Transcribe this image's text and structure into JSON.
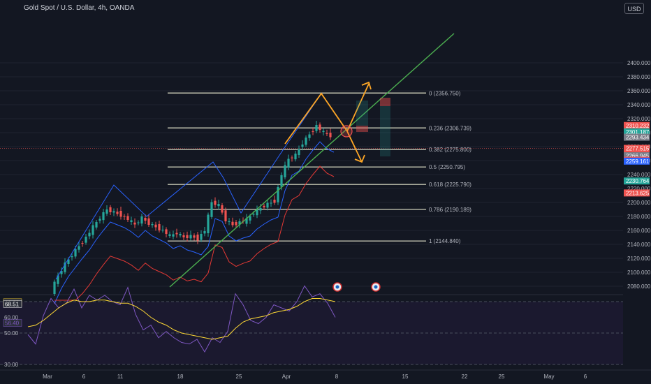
{
  "header": {
    "title": "Gold Spot / U.S. Dollar, 4h, OANDA",
    "currency_button": "USD"
  },
  "colors": {
    "background": "#131722",
    "axis_text": "#b2b5be",
    "up": "#26a69a",
    "down": "#ef5350",
    "fib": "#c2c3b0",
    "trend": "#4caf50",
    "arrow": "#ffa726",
    "ma_fast": "#2962ff",
    "ma_slow": "#e53935",
    "rsi": "#7e57c2",
    "rsi_ma": "#fdd835"
  },
  "chart_data": {
    "type": "candlestick",
    "xlabel": "",
    "ylabel": "",
    "x_ticks": [
      "Mar",
      "6",
      "11",
      "18",
      "25",
      "Apr",
      "8",
      "15",
      "22",
      "25",
      "May",
      "6"
    ],
    "y_ticks": [
      2080,
      2100,
      2120,
      2140,
      2160,
      2180,
      2200,
      2220,
      2240,
      2260,
      2280,
      2300,
      2320,
      2340,
      2360,
      2380,
      2400
    ],
    "y_tick_labels": [
      "2080.000",
      "2100.000",
      "2120.000",
      "2140.000",
      "2160.000",
      "2180.000",
      "2200.000",
      "2220.000",
      "2240.000",
      "2260.000",
      "2280.000",
      "2300.000",
      "2320.000",
      "2340.000",
      "2360.000",
      "2380.000",
      "2400.000"
    ],
    "ylim": [
      2064,
      2413
    ],
    "fib_levels": [
      {
        "label": "0 (2356.750)",
        "value": 2356.75
      },
      {
        "label": "0.236 (2306.739)",
        "value": 2306.739
      },
      {
        "label": "0.382 (2275.800)",
        "value": 2275.8
      },
      {
        "label": "0.5 (2250.795)",
        "value": 2250.795
      },
      {
        "label": "0.618 (2225.790)",
        "value": 2225.79
      },
      {
        "label": "0.786 (2190.189)",
        "value": 2190.189
      },
      {
        "label": "1 (2144.840)",
        "value": 2144.84
      }
    ],
    "price_badges": [
      {
        "value": 2310.232,
        "text": "2310.232",
        "color": "#ef5350"
      },
      {
        "value": 2301.187,
        "text": "2301.187",
        "color": "#26a69a"
      },
      {
        "value": 2293.434,
        "text": "2293.434",
        "color": "#787b86"
      },
      {
        "value": 2277.515,
        "text": "2277.515",
        "sub": "01:40:20",
        "color": "#ef5350"
      },
      {
        "value": 2266.945,
        "text": "2266.945",
        "color": "#787b86"
      },
      {
        "value": 2260.484,
        "text": "2260.484",
        "color": "#ef5350"
      },
      {
        "value": 2259.161,
        "text": "2259.161",
        "color": "#2962ff"
      },
      {
        "value": 2230.764,
        "text": "2230.764",
        "color": "#26a69a"
      },
      {
        "value": 2213.625,
        "text": "2213.625",
        "color": "#ef5350"
      }
    ],
    "price_path": [
      [
        0,
        2073
      ],
      [
        2,
        2095
      ],
      [
        4,
        2112
      ],
      [
        6,
        2125
      ],
      [
        8,
        2138
      ],
      [
        10,
        2150
      ],
      [
        12,
        2165
      ],
      [
        14,
        2178
      ],
      [
        16,
        2190
      ],
      [
        18,
        2186
      ],
      [
        20,
        2182
      ],
      [
        22,
        2176
      ],
      [
        24,
        2168
      ],
      [
        26,
        2178
      ],
      [
        28,
        2170
      ],
      [
        30,
        2165
      ],
      [
        32,
        2160
      ],
      [
        34,
        2152
      ],
      [
        36,
        2156
      ],
      [
        38,
        2150
      ],
      [
        40,
        2152
      ],
      [
        42,
        2148
      ],
      [
        44,
        2160
      ],
      [
        46,
        2200
      ],
      [
        48,
        2196
      ],
      [
        50,
        2175
      ],
      [
        52,
        2168
      ],
      [
        54,
        2172
      ],
      [
        56,
        2175
      ],
      [
        58,
        2185
      ],
      [
        60,
        2192
      ],
      [
        62,
        2198
      ],
      [
        64,
        2202
      ],
      [
        66,
        2240
      ],
      [
        68,
        2262
      ],
      [
        70,
        2268
      ],
      [
        72,
        2285
      ],
      [
        74,
        2298
      ],
      [
        76,
        2310
      ],
      [
        78,
        2300
      ],
      [
        80,
        2295
      ]
    ],
    "trade_boxes": [
      {
        "from": 2292,
        "to": 2305
      },
      {
        "from": 2270,
        "to": 2268
      },
      {
        "from": 2300,
        "to": 2237
      }
    ],
    "rsi": {
      "y_tick_labels": [
        "30.00",
        "50.00",
        "60.00"
      ],
      "y_ticks": [
        30,
        50,
        60
      ],
      "ylim": [
        25,
        95
      ],
      "badges": [
        {
          "value": 69.63,
          "text": "69.63",
          "color": "#fdd835"
        },
        {
          "value": 68.51,
          "text": "68.51",
          "color": "#ffffff"
        },
        {
          "value": 56.4,
          "text": "56.40",
          "color": "#7e57c2"
        }
      ],
      "levels": [
        70,
        50,
        30
      ],
      "values": [
        49,
        43,
        61,
        72,
        66,
        69,
        78,
        66,
        74,
        71,
        74,
        70,
        68,
        79,
        62,
        52,
        55,
        47,
        51,
        47,
        44,
        43,
        46,
        38,
        47,
        44,
        51,
        75,
        68,
        58,
        56,
        60,
        68,
        66,
        64,
        70,
        80,
        73,
        75,
        69,
        60
      ],
      "ma": [
        54,
        55,
        58,
        62,
        66,
        69,
        71,
        70,
        70,
        71,
        71,
        70,
        69,
        69,
        67,
        64,
        60,
        57,
        55,
        52,
        50,
        49,
        48,
        47,
        46,
        47,
        48,
        53,
        57,
        59,
        60,
        61,
        63,
        64,
        65,
        67,
        70,
        72,
        72,
        71,
        70
      ]
    }
  }
}
